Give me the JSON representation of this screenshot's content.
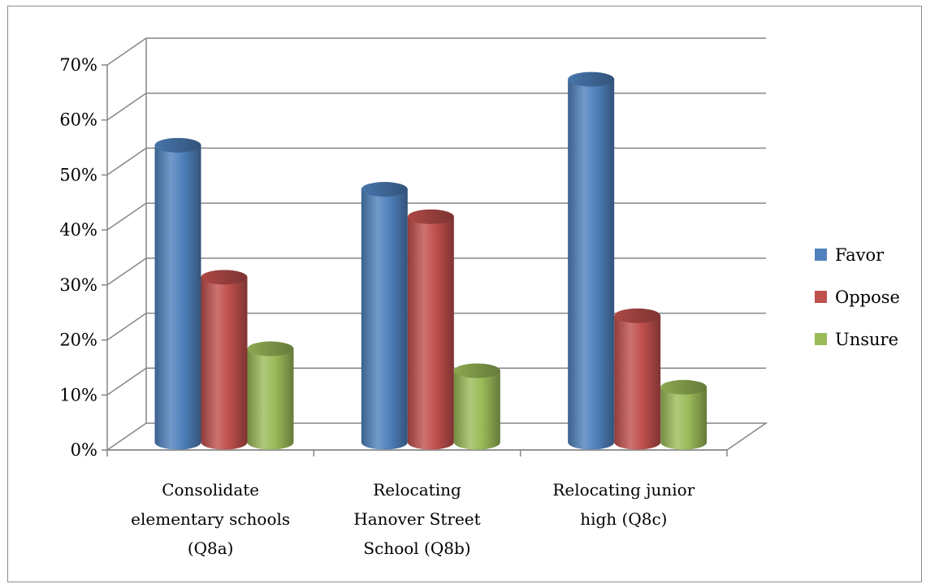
{
  "chart_data": {
    "type": "bar",
    "style": "3d-cylinder",
    "categories": [
      [
        "Consolidate",
        "elementary schools",
        "(Q8a)"
      ],
      [
        "Relocating",
        "Hanover Street",
        "School (Q8b)"
      ],
      [
        "Relocating junior",
        "high (Q8c)"
      ]
    ],
    "series": [
      {
        "name": "Favor",
        "color": "#4f81bd",
        "values": [
          54,
          46,
          66
        ]
      },
      {
        "name": "Oppose",
        "color": "#c0504d",
        "values": [
          30,
          41,
          23
        ]
      },
      {
        "name": "Unsure",
        "color": "#9bbb59",
        "values": [
          17,
          13,
          10
        ]
      }
    ],
    "y_ticks": [
      "0%",
      "10%",
      "20%",
      "30%",
      "40%",
      "50%",
      "60%",
      "70%"
    ],
    "ylim": [
      0,
      70
    ],
    "grid": true,
    "legend": "right"
  }
}
